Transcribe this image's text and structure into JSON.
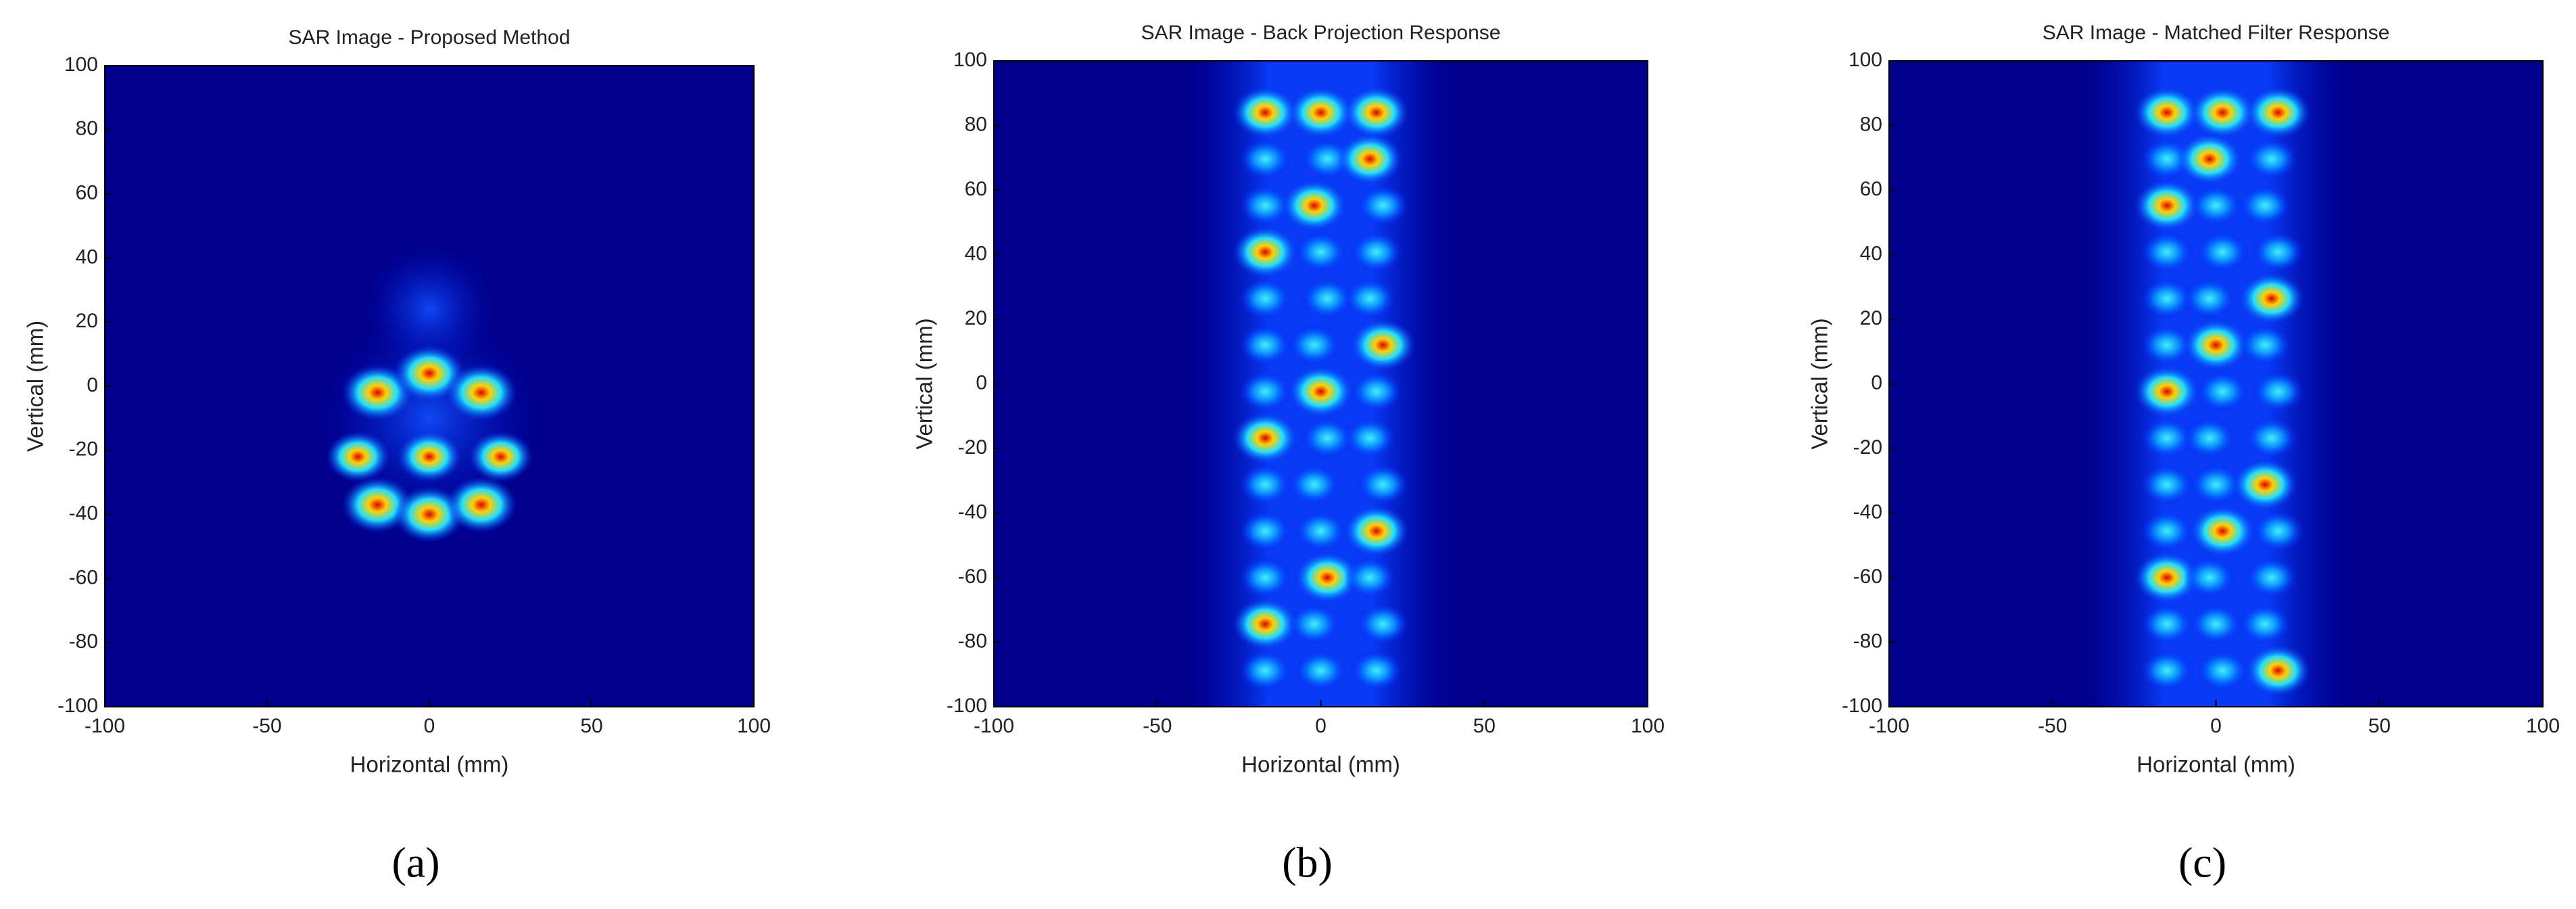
{
  "chart_data": [
    {
      "type": "heatmap",
      "title": "SAR Image - Proposed Method",
      "xlabel": "Horizontal (mm)",
      "ylabel": "Vertical (mm)",
      "xlim": [
        -100,
        100
      ],
      "ylim": [
        -100,
        100
      ],
      "xticks": [
        -100,
        -50,
        0,
        50,
        100
      ],
      "yticks": [
        -100,
        -80,
        -60,
        -40,
        -20,
        0,
        20,
        40,
        60,
        80,
        100
      ],
      "caption": "(a)"
    },
    {
      "type": "heatmap",
      "title": "SAR Image - Back Projection Response",
      "xlabel": "Horizontal (mm)",
      "ylabel": "Vertical (mm)",
      "xlim": [
        -100,
        100
      ],
      "ylim": [
        -100,
        100
      ],
      "xticks": [
        -100,
        -50,
        0,
        50,
        100
      ],
      "yticks": [
        -100,
        -80,
        -60,
        -40,
        -20,
        0,
        20,
        40,
        60,
        80,
        100
      ],
      "caption": "(b)"
    },
    {
      "type": "heatmap",
      "title": "SAR Image - Matched Filter Response",
      "xlabel": "Horizontal (mm)",
      "ylabel": "Vertical (mm)",
      "xlim": [
        -100,
        100
      ],
      "ylim": [
        -100,
        100
      ],
      "xticks": [
        -100,
        -50,
        0,
        50,
        100
      ],
      "yticks": [
        -100,
        -80,
        -60,
        -40,
        -20,
        0,
        20,
        40,
        60,
        80,
        100
      ],
      "caption": "(c)"
    }
  ]
}
